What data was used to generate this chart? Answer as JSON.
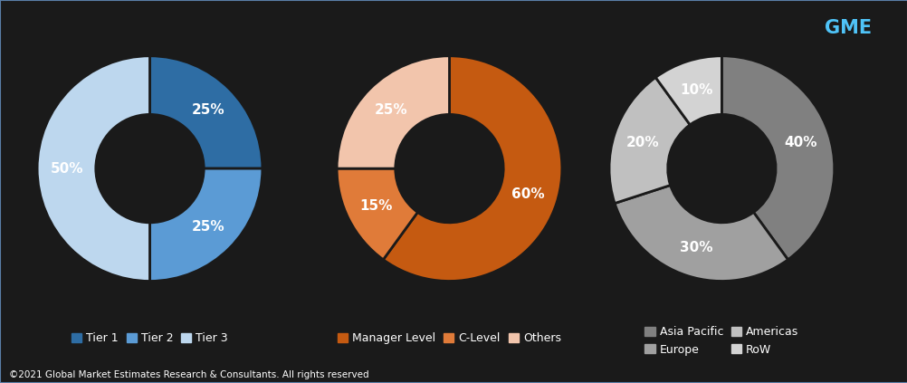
{
  "chart1": {
    "values": [
      25,
      25,
      50
    ],
    "labels": [
      "25%",
      "25%",
      "50%"
    ],
    "colors": [
      "#2E6DA4",
      "#5B9BD5",
      "#BDD7EE"
    ],
    "legend": [
      "Tier 1",
      "Tier 2",
      "Tier 3"
    ],
    "legend_colors": [
      "#2E6DA4",
      "#5B9BD5",
      "#BDD7EE"
    ],
    "startangle": 90
  },
  "chart2": {
    "values": [
      60,
      15,
      25
    ],
    "labels": [
      "60%",
      "15%",
      "25%"
    ],
    "colors": [
      "#C55A11",
      "#E07B39",
      "#F2C5AC"
    ],
    "legend": [
      "Manager Level",
      "C-Level",
      "Others"
    ],
    "legend_colors": [
      "#C55A11",
      "#E07B39",
      "#F2C5AC"
    ],
    "startangle": 90
  },
  "chart3": {
    "values": [
      40,
      30,
      20,
      10
    ],
    "labels": [
      "40%",
      "30%",
      "20%",
      "10%"
    ],
    "colors": [
      "#808080",
      "#A0A0A0",
      "#C0C0C0",
      "#D3D3D3"
    ],
    "legend": [
      "Asia Pacific",
      "Europe",
      "Americas",
      "RoW"
    ],
    "legend_colors": [
      "#808080",
      "#A0A0A0",
      "#C0C0C0",
      "#D3D3D3"
    ],
    "startangle": 90
  },
  "footer": "©2021 Global Market Estimates Research & Consultants. All rights reserved",
  "background_color": "#1a1a1a",
  "hole_color": "#1a1a1a",
  "wedge_label_fontsize": 11,
  "legend_fontsize": 9,
  "text_color": "#FFFFFF",
  "border_color": "#5A7FA8"
}
